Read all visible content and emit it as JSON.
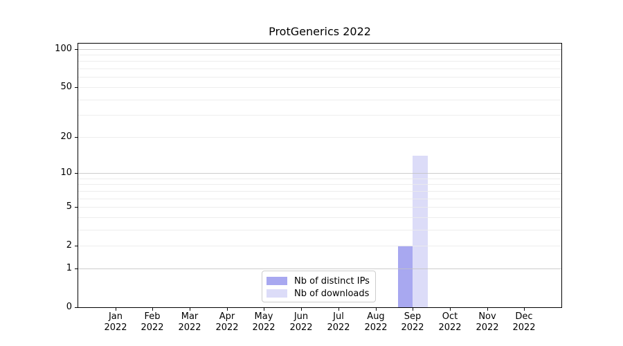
{
  "chart_data": {
    "type": "bar",
    "title": "ProtGenerics 2022",
    "categories": [
      "Jan\n2022",
      "Feb\n2022",
      "Mar\n2022",
      "Apr\n2022",
      "May\n2022",
      "Jun\n2022",
      "Jul\n2022",
      "Aug\n2022",
      "Sep\n2022",
      "Oct\n2022",
      "Nov\n2022",
      "Dec\n2022"
    ],
    "series": [
      {
        "name": "Nb of distinct IPs",
        "color": "#a8a8f0",
        "values": [
          0,
          0,
          0,
          0,
          0,
          0,
          0,
          0,
          2,
          0,
          0,
          0
        ]
      },
      {
        "name": "Nb of downloads",
        "color": "#dcdcf8",
        "values": [
          0,
          0,
          0,
          0,
          0,
          0,
          0,
          0,
          14,
          0,
          0,
          0
        ]
      }
    ],
    "xlabel": "",
    "ylabel": "",
    "yscale": "log1p",
    "ylim": [
      0,
      110
    ],
    "yticks": [
      0,
      1,
      2,
      5,
      10,
      20,
      50,
      100
    ],
    "major_gridlines": [
      1,
      10,
      100
    ],
    "minor_gridlines": [
      2,
      3,
      4,
      5,
      6,
      7,
      8,
      9,
      20,
      30,
      40,
      50,
      60,
      70,
      80,
      90
    ],
    "grid": true,
    "legend_position": "lower center",
    "colors": {
      "axis": "#000000",
      "major_grid": "#c3c3c3",
      "minor_grid": "#ebebeb",
      "background": "#ffffff"
    }
  }
}
